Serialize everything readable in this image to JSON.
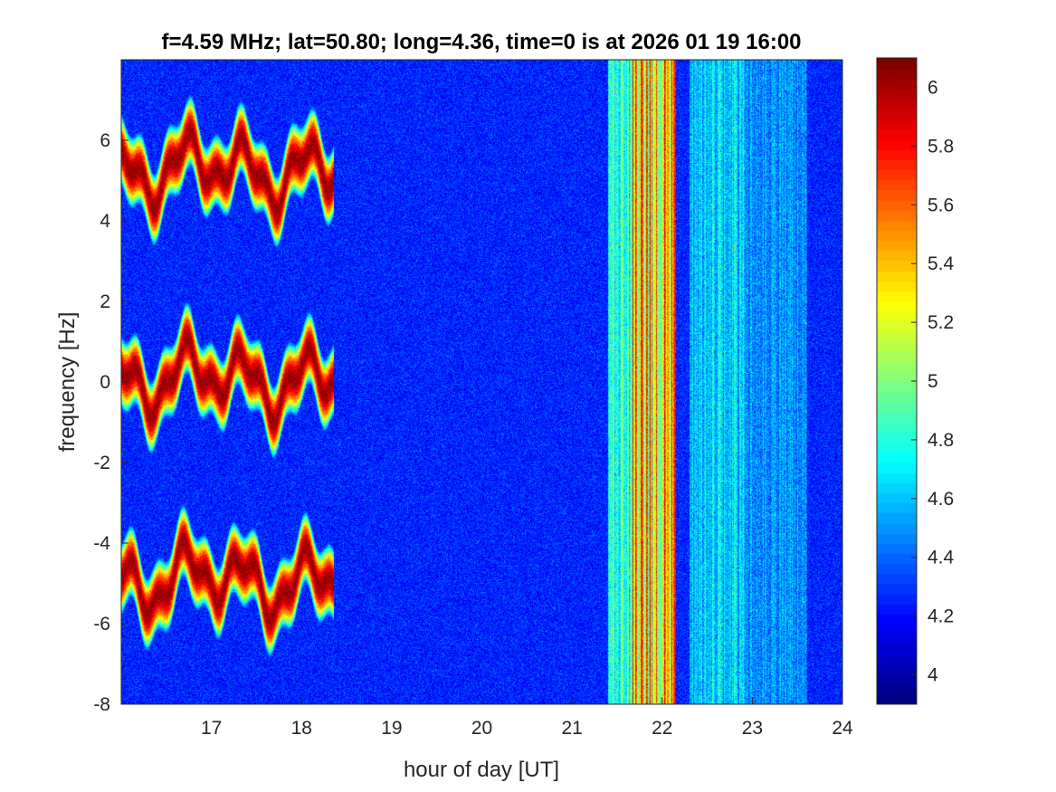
{
  "chart_data": {
    "type": "heatmap",
    "title": "f=4.59 MHz;  lat=50.80; long=4.36, time=0 is at 2026 01 19 16:00",
    "xlabel": "hour of day [UT]",
    "ylabel": "frequency [Hz]",
    "xlim": [
      16,
      24
    ],
    "ylim": [
      -8,
      8
    ],
    "xticks": [
      "17",
      "18",
      "19",
      "20",
      "21",
      "22",
      "23",
      "24"
    ],
    "xtick_values": [
      17,
      18,
      19,
      20,
      21,
      22,
      23,
      24
    ],
    "yticks": [
      "-8",
      "-6",
      "-4",
      "-2",
      "0",
      "2",
      "4",
      "6"
    ],
    "ytick_values": [
      -8,
      -6,
      -4,
      -2,
      0,
      2,
      4,
      6
    ],
    "colorbar": {
      "colormap": "jet",
      "clim": [
        3.9,
        6.1
      ],
      "ticks": [
        "4",
        "4.2",
        "4.4",
        "4.6",
        "4.8",
        "5",
        "5.2",
        "5.4",
        "5.6",
        "5.8",
        "6"
      ],
      "tick_values": [
        4,
        4.2,
        4.4,
        4.6,
        4.8,
        5,
        5.2,
        5.4,
        5.6,
        5.8,
        6
      ]
    },
    "background_level": 4.25,
    "traces": [
      {
        "t_start": 16.0,
        "t_end": 18.35,
        "center": 0.1,
        "peak": 6.05
      },
      {
        "t_start": 16.0,
        "t_end": 18.35,
        "center": 5.3,
        "peak": 6.05
      },
      {
        "t_start": 16.0,
        "t_end": 18.35,
        "center": -4.9,
        "peak": 6.05
      }
    ],
    "vertical_bands": [
      {
        "t_start": 21.4,
        "t_end": 21.65,
        "peak": 5.0
      },
      {
        "t_start": 21.65,
        "t_end": 22.15,
        "peak": 5.9
      },
      {
        "t_start": 22.3,
        "t_end": 22.9,
        "peak": 4.8
      },
      {
        "t_start": 22.9,
        "t_end": 23.6,
        "peak": 4.6
      }
    ]
  }
}
